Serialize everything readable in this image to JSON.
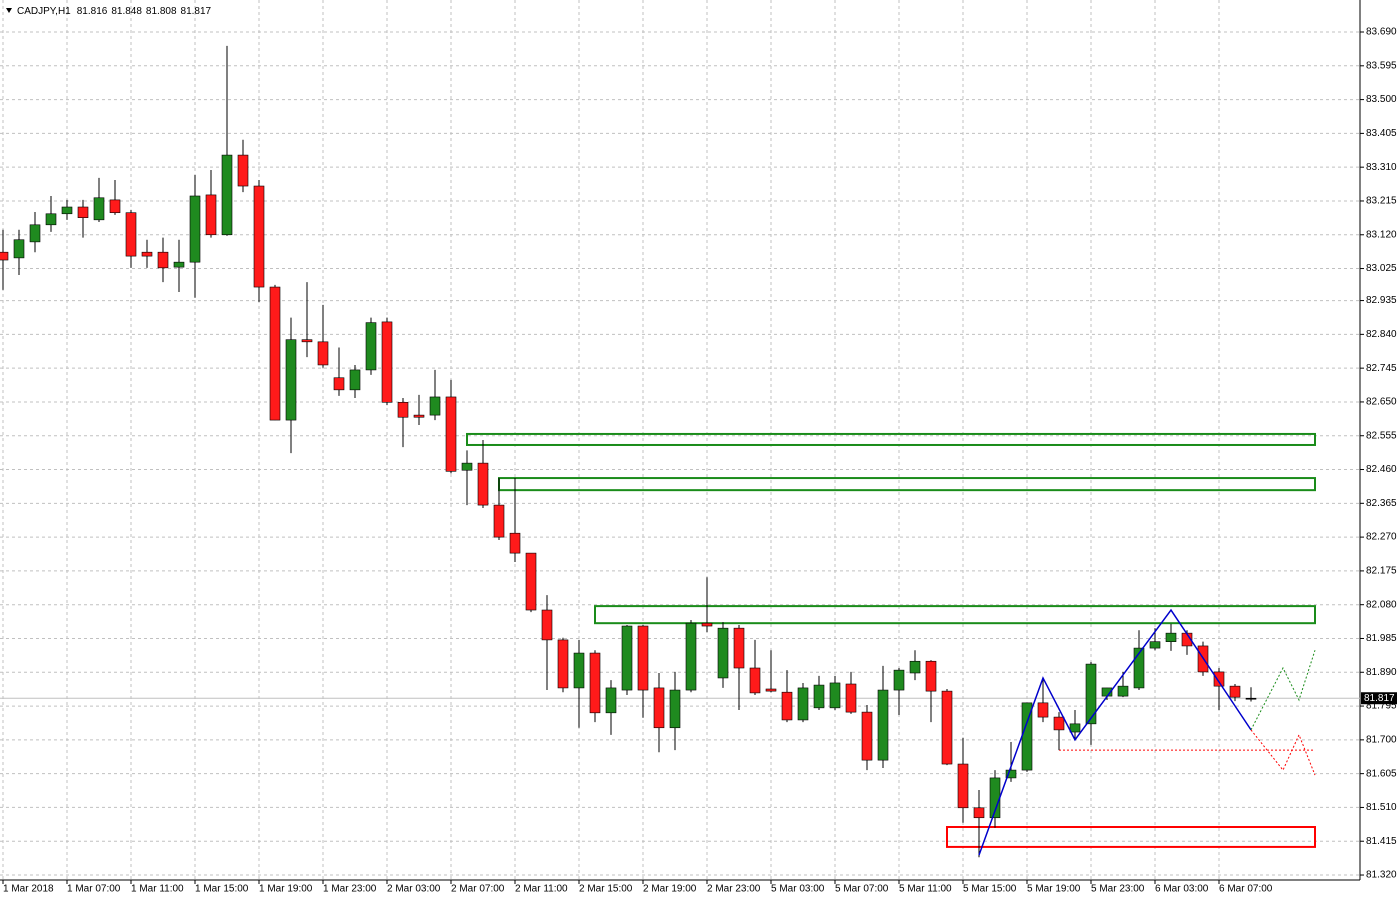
{
  "chart_data": {
    "type": "candlestick",
    "symbol": "CADJPY,H1",
    "categories": [
      "1 Mar 2018",
      null,
      null,
      null,
      "1 Mar 07:00",
      null,
      null,
      null,
      "1 Mar 11:00",
      null,
      null,
      null,
      "1 Mar 15:00",
      null,
      null,
      null,
      "1 Mar 19:00",
      null,
      null,
      null,
      "1 Mar 23:00",
      null,
      null,
      null,
      "2 Mar 03:00",
      null,
      null,
      null,
      "2 Mar 07:00",
      null,
      null,
      null,
      "2 Mar 11:00",
      null,
      null,
      null,
      "2 Mar 15:00",
      null,
      null,
      null,
      "2 Mar 19:00",
      null,
      null,
      null,
      "2 Mar 23:00",
      null,
      null,
      null,
      "5 Mar 03:00",
      null,
      null,
      null,
      "5 Mar 07:00",
      null,
      null,
      null,
      "5 Mar 11:00",
      null,
      null,
      null,
      "5 Mar 15:00",
      null,
      null,
      null,
      "5 Mar 19:00",
      null,
      null,
      null,
      "5 Mar 23:00",
      null,
      null,
      null,
      "6 Mar 03:00",
      null,
      null,
      null,
      "6 Mar 07:00",
      null,
      null
    ],
    "open": [
      83.071,
      83.055,
      83.1,
      83.148,
      83.179,
      83.198,
      83.162,
      83.218,
      83.182,
      83.071,
      83.071,
      83.029,
      83.043,
      83.232,
      83.12,
      83.344,
      83.257,
      82.973,
      82.599,
      82.825,
      82.819,
      82.718,
      82.684,
      82.74,
      82.875,
      82.649,
      82.613,
      82.613,
      82.664,
      82.458,
      82.478,
      82.36,
      82.281,
      82.225,
      82.065,
      81.981,
      81.846,
      81.944,
      81.776,
      81.84,
      82.02,
      81.846,
      81.734,
      81.84,
      82.028,
      81.874,
      82.014,
      81.902,
      81.843,
      81.834,
      81.756,
      81.79,
      81.79,
      81.857,
      81.778,
      81.643,
      81.84,
      81.888,
      81.921,
      81.837,
      81.632,
      81.509,
      81.481,
      81.593,
      81.615,
      81.804,
      81.764,
      81.722,
      81.745,
      81.823,
      81.823,
      81.846,
      81.958,
      81.976,
      82.0,
      81.964,
      81.891,
      81.851,
      81.816
    ],
    "high": [
      83.134,
      83.134,
      83.184,
      83.229,
      83.218,
      83.218,
      83.28,
      83.274,
      83.19,
      83.106,
      83.112,
      83.106,
      83.288,
      83.302,
      83.651,
      83.387,
      83.274,
      82.979,
      82.887,
      82.987,
      82.923,
      82.803,
      82.754,
      82.887,
      82.887,
      82.661,
      82.67,
      82.74,
      82.712,
      82.514,
      82.543,
      82.436,
      82.436,
      82.225,
      82.107,
      81.987,
      81.981,
      81.952,
      81.868,
      82.023,
      82.023,
      81.888,
      81.891,
      82.037,
      82.157,
      82.031,
      82.023,
      81.981,
      81.952,
      81.896,
      81.86,
      81.88,
      81.88,
      81.891,
      81.798,
      81.908,
      81.902,
      81.952,
      81.924,
      81.843,
      81.706,
      81.559,
      81.615,
      81.694,
      81.804,
      81.874,
      81.778,
      81.784,
      81.919,
      81.846,
      81.891,
      82.008,
      82.014,
      82.026,
      82.008,
      81.976,
      81.902,
      81.857,
      81.848
    ],
    "low": [
      82.965,
      83.007,
      83.071,
      83.128,
      83.162,
      83.112,
      83.156,
      83.176,
      83.027,
      83.027,
      82.987,
      82.959,
      82.943,
      83.112,
      83.117,
      83.24,
      82.931,
      82.599,
      82.506,
      82.776,
      82.746,
      82.667,
      82.661,
      82.726,
      82.641,
      82.523,
      82.585,
      82.599,
      82.449,
      82.36,
      82.352,
      82.262,
      82.2,
      82.059,
      81.84,
      81.834,
      81.734,
      81.75,
      81.714,
      81.826,
      81.762,
      81.665,
      81.671,
      81.834,
      82.003,
      81.846,
      81.784,
      81.826,
      81.834,
      81.75,
      81.75,
      81.784,
      81.784,
      81.773,
      81.615,
      81.621,
      81.77,
      81.868,
      81.75,
      81.629,
      81.467,
      81.37,
      81.453,
      81.582,
      81.61,
      81.75,
      81.671,
      81.7,
      81.686,
      81.812,
      81.82,
      81.84,
      81.952,
      81.95,
      81.939,
      81.88,
      81.784,
      81.809,
      81.808
    ],
    "close": [
      83.049,
      83.106,
      83.148,
      83.179,
      83.198,
      83.168,
      83.224,
      83.182,
      83.06,
      83.06,
      83.027,
      83.043,
      83.229,
      83.12,
      83.344,
      83.257,
      82.973,
      82.599,
      82.825,
      82.819,
      82.754,
      82.684,
      82.74,
      82.873,
      82.649,
      82.607,
      82.607,
      82.664,
      82.455,
      82.478,
      82.36,
      82.27,
      82.225,
      82.065,
      81.981,
      81.846,
      81.944,
      81.776,
      81.846,
      82.02,
      81.84,
      81.734,
      81.84,
      82.028,
      82.02,
      82.014,
      81.902,
      81.832,
      81.837,
      81.756,
      81.846,
      81.854,
      81.86,
      81.778,
      81.643,
      81.84,
      81.896,
      81.921,
      81.837,
      81.632,
      81.509,
      81.481,
      81.593,
      81.615,
      81.804,
      81.764,
      81.728,
      81.745,
      81.913,
      81.846,
      81.851,
      81.958,
      81.976,
      82.0,
      81.964,
      81.891,
      81.851,
      81.82,
      81.817
    ],
    "up_color": "#1f8a1f",
    "down_color": "#ff1a1a",
    "wick_color": "#000000",
    "ylim": [
      81.306,
      83.78
    ],
    "yticks": [
      {
        "value": 83.69,
        "label": "83.690"
      },
      83.595,
      {
        "value": 83.5,
        "label": "83.500"
      },
      83.405,
      {
        "value": 83.31,
        "label": "83.310"
      },
      83.215,
      {
        "value": 83.12,
        "label": "83.120"
      },
      83.025,
      82.935,
      {
        "value": 82.84,
        "label": "82.840"
      },
      82.745,
      {
        "value": 82.65,
        "label": "82.650"
      },
      82.555,
      {
        "value": 82.46,
        "label": "82.460"
      },
      82.365,
      {
        "value": 82.27,
        "label": "82.270"
      },
      82.175,
      {
        "value": 82.08,
        "label": "82.080"
      },
      81.985,
      {
        "value": 81.89,
        "label": "81.890"
      },
      81.795,
      {
        "value": 81.7,
        "label": "81.700"
      },
      81.605,
      {
        "value": 81.51,
        "label": "81.510"
      },
      81.415,
      {
        "value": 81.32,
        "label": "81.320"
      }
    ],
    "grid": true,
    "zones": [
      {
        "color": "#1a8c1a",
        "start": 29,
        "end": 82,
        "top": 82.56,
        "bottom": 82.529
      },
      {
        "color": "#1a8c1a",
        "start": 31,
        "end": 82,
        "top": 82.436,
        "bottom": 82.402
      },
      {
        "color": "#1a8c1a",
        "start": 37,
        "end": 82,
        "top": 82.076,
        "bottom": 82.028
      },
      {
        "color": "#ff0000",
        "start": 59,
        "end": 82,
        "top": 81.455,
        "bottom": 81.399
      }
    ],
    "zigzag": {
      "color": "#0000cc",
      "x": [
        61,
        65,
        67,
        73,
        78
      ],
      "values": [
        81.376,
        81.874,
        81.7,
        82.065,
        81.728
      ]
    },
    "projections": [
      {
        "color": "#1a8c1a",
        "x": [
          78,
          80,
          81,
          82
        ],
        "values": [
          81.728,
          81.902,
          81.812,
          81.952
        ]
      },
      {
        "color": "#ff0000",
        "x": [
          78,
          80,
          81,
          82
        ],
        "values": [
          81.728,
          81.615,
          81.714,
          81.601
        ]
      }
    ],
    "level": {
      "color": "#ff0000",
      "x": [
        66,
        82
      ],
      "value": 81.671
    }
  }
}
